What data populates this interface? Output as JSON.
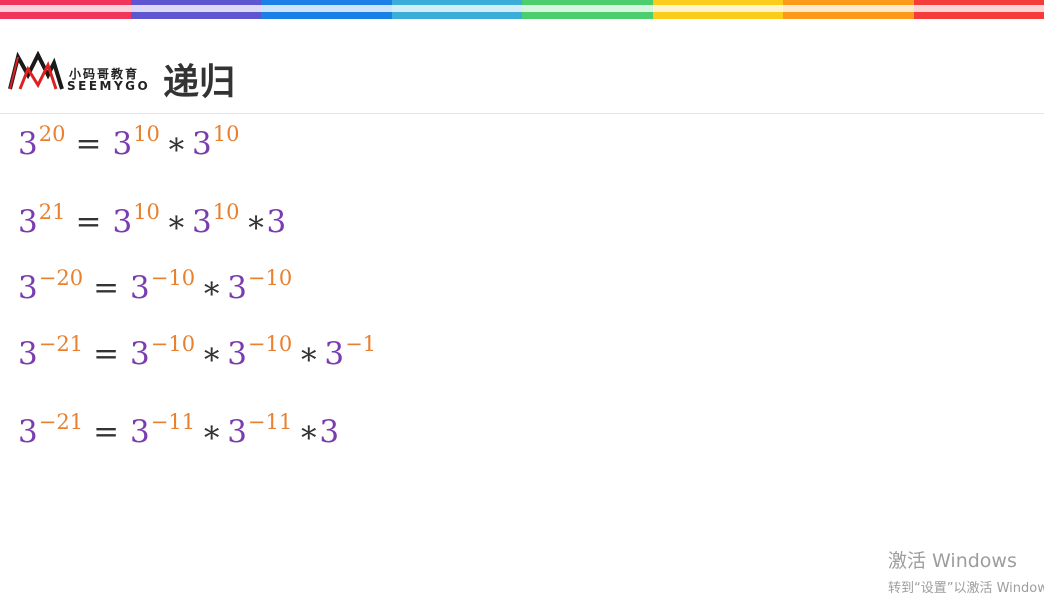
{
  "colors": {
    "topbar": [
      "#f0375b",
      "#5e55d0",
      "#1b7fe8",
      "#3aaed8",
      "#4ccd6e",
      "#fccc1a",
      "#fb9a1b",
      "#f53c3a"
    ],
    "base": "#7a3db0",
    "exponent": "#e8802f",
    "text": "#333333"
  },
  "header": {
    "logo_cn": "小码哥教育",
    "logo_en": "SEEMYGO",
    "title": "递归"
  },
  "formulas": [
    {
      "lhs": "3",
      "lhs_exp": "20",
      "terms": [
        {
          "base": "3",
          "exp": "10"
        },
        {
          "base": "3",
          "exp": "10"
        }
      ],
      "tail": ""
    },
    {
      "lhs": "3",
      "lhs_exp": "21",
      "terms": [
        {
          "base": "3",
          "exp": "10"
        },
        {
          "base": "3",
          "exp": "10"
        }
      ],
      "tail": "3"
    },
    {
      "lhs": "3",
      "lhs_exp": "−20",
      "terms": [
        {
          "base": "3",
          "exp": "−10"
        },
        {
          "base": "3",
          "exp": "−10"
        }
      ],
      "tail": ""
    },
    {
      "lhs": "3",
      "lhs_exp": "−21",
      "terms": [
        {
          "base": "3",
          "exp": "−10"
        },
        {
          "base": "3",
          "exp": "−10"
        },
        {
          "base": "3",
          "exp": "−1"
        }
      ],
      "tail": ""
    },
    {
      "lhs": "3",
      "lhs_exp": "−21",
      "terms": [
        {
          "base": "3",
          "exp": "−11"
        },
        {
          "base": "3",
          "exp": "−11"
        }
      ],
      "tail": "3"
    }
  ],
  "symbols": {
    "equals": "=",
    "times": "∗"
  },
  "watermark": {
    "line1": "激活 Windows",
    "line2": "转到“设置”以激活 Windows。"
  }
}
